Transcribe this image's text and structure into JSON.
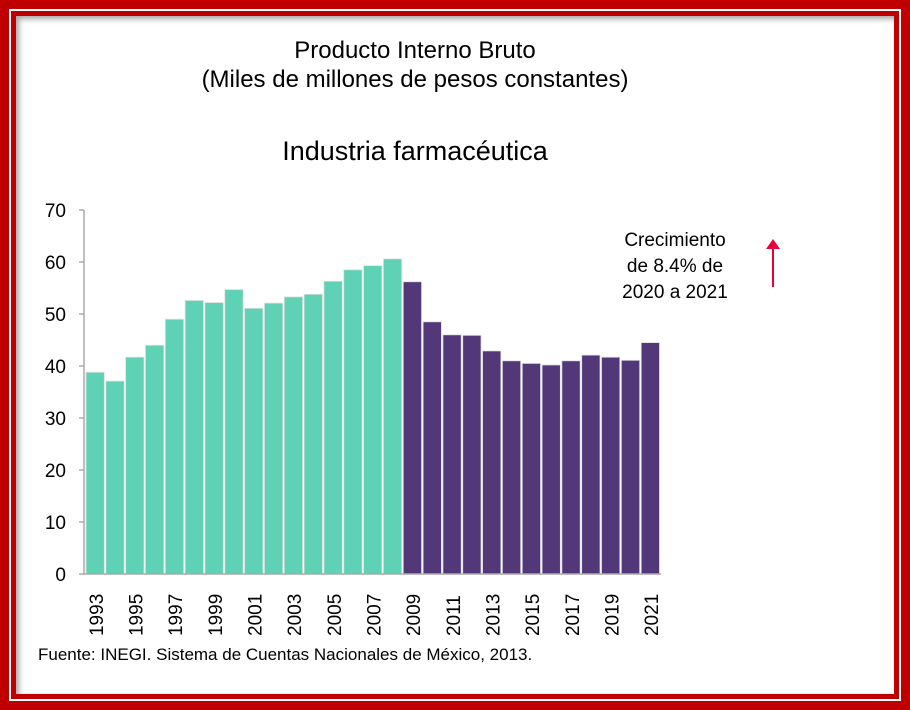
{
  "chart_data": {
    "type": "bar",
    "title": "Producto Interno Bruto",
    "subtitle": "(Miles de millones de pesos constantes)",
    "chart_title": "Industria farmacéutica",
    "categories": [
      "1993",
      "1994",
      "1995",
      "1996",
      "1997",
      "1998",
      "1999",
      "2000",
      "2001",
      "2002",
      "2003",
      "2004",
      "2005",
      "2006",
      "2007",
      "2008",
      "2009",
      "2010",
      "2011",
      "2012",
      "2013",
      "2014",
      "2015",
      "2016",
      "2017",
      "2018",
      "2019",
      "2020",
      "2021"
    ],
    "values": [
      38.8,
      37.1,
      41.7,
      44.0,
      49.0,
      52.6,
      52.2,
      54.7,
      51.1,
      52.1,
      53.3,
      53.8,
      56.3,
      58.5,
      59.3,
      60.6,
      56.2,
      48.5,
      46.0,
      45.9,
      42.9,
      41.0,
      40.5,
      40.2,
      41.0,
      42.1,
      41.7,
      41.1,
      44.5
    ],
    "ylim": [
      0,
      70
    ],
    "yticks": [
      "0",
      "10",
      "20",
      "30",
      "40",
      "50",
      "60",
      "70"
    ],
    "xtick_labels": [
      "1993",
      "1995",
      "1997",
      "1999",
      "2001",
      "2003",
      "2005",
      "2007",
      "2009",
      "2011",
      "2013",
      "2015",
      "2017",
      "2019",
      "2021"
    ],
    "colors": {
      "before_2009": "#5fd1b4",
      "from_2009": "#523878",
      "arrow": "#e8003c"
    },
    "annotation": [
      "Crecimiento",
      "de 8.4% de",
      "2020 a 2021"
    ],
    "source": "Fuente: INEGI. Sistema de Cuentas Nacionales de México, 2013."
  }
}
